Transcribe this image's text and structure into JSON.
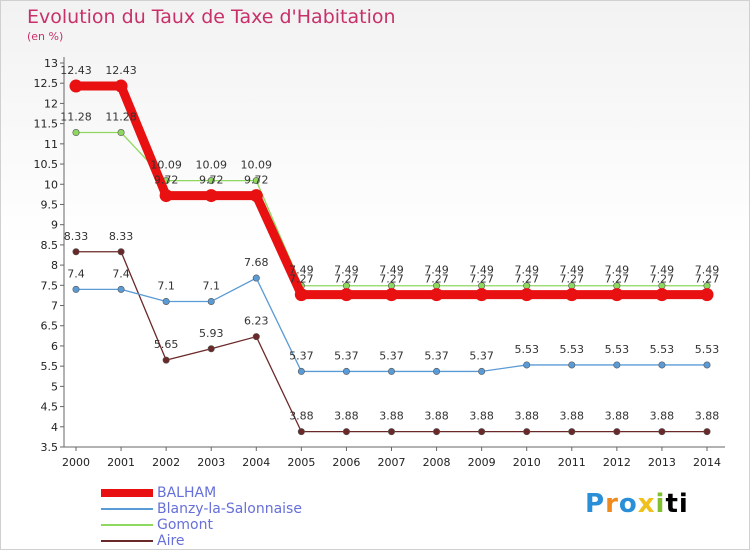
{
  "title": "Evolution du Taux de Taxe d'Habitation",
  "subtitle": "(en %)",
  "logo_text": "Proxiti",
  "chart_data": {
    "type": "line",
    "title": "Evolution du Taux de Taxe d'Habitation",
    "ylabel": "(en %)",
    "x": [
      "2000",
      "2001",
      "2002",
      "2003",
      "2004",
      "2005",
      "2006",
      "2007",
      "2008",
      "2009",
      "2010",
      "2011",
      "2012",
      "2013",
      "2014"
    ],
    "ylim": [
      3.5,
      13
    ],
    "yticks": [
      "3.5",
      "4",
      "4.5",
      "5",
      "5.5",
      "6",
      "6.5",
      "7",
      "7.5",
      "8",
      "8.5",
      "9",
      "9.5",
      "10",
      "10.5",
      "11",
      "11.5",
      "12",
      "12.5",
      "13"
    ],
    "grid": false,
    "legend_position": "bottom-left",
    "series": [
      {
        "name": "Aire",
        "color": "#6b2828",
        "values": [
          8.33,
          8.33,
          5.65,
          5.93,
          6.23,
          3.88,
          3.88,
          3.88,
          3.88,
          3.88,
          3.88,
          3.88,
          3.88,
          3.88,
          3.88
        ],
        "labels": [
          "8.33",
          "8.33",
          "5.65",
          "5.93",
          "6.23",
          "3.88",
          "3.88",
          "3.88",
          "3.88",
          "3.88",
          "3.88",
          "3.88",
          "3.88",
          "3.88",
          "3.88"
        ]
      },
      {
        "name": "Blanzy-la-Salonnaise",
        "color": "#5b9bd5",
        "values": [
          7.4,
          7.4,
          7.1,
          7.1,
          7.68,
          5.37,
          5.37,
          5.37,
          5.37,
          5.37,
          5.53,
          5.53,
          5.53,
          5.53,
          5.53
        ],
        "labels": [
          "7.4",
          "7.4",
          "7.1",
          "7.1",
          "7.68",
          "5.37",
          "5.37",
          "5.37",
          "5.37",
          "5.37",
          "5.53",
          "5.53",
          "5.53",
          "5.53",
          "5.53"
        ]
      },
      {
        "name": "Gomont",
        "color": "#8ed860",
        "values": [
          11.28,
          11.28,
          10.09,
          10.09,
          10.09,
          7.49,
          7.49,
          7.49,
          7.49,
          7.49,
          7.49,
          7.49,
          7.49,
          7.49,
          7.49
        ],
        "labels": [
          "11.28",
          "11.28",
          "10.09",
          "10.09",
          "10.09",
          "7.49",
          "7.49",
          "7.49",
          "7.49",
          "7.49",
          "7.49",
          "7.49",
          "7.49",
          "7.49",
          "7.49"
        ]
      },
      {
        "name": "BALHAM",
        "color": "#e81010",
        "values": [
          12.43,
          12.43,
          9.72,
          9.72,
          9.72,
          7.27,
          7.27,
          7.27,
          7.27,
          7.27,
          7.27,
          7.27,
          7.27,
          7.27,
          7.27
        ],
        "labels": [
          "12.43",
          "12.43",
          "9.72",
          "9.72",
          "9.72",
          "7.27",
          "7.27",
          "7.27",
          "7.27",
          "7.27",
          "7.27",
          "7.27",
          "7.27",
          "7.27",
          "7.27"
        ]
      }
    ],
    "legend": [
      "BALHAM",
      "Blanzy-la-Salonnaise",
      "Gomont",
      "Aire"
    ]
  }
}
